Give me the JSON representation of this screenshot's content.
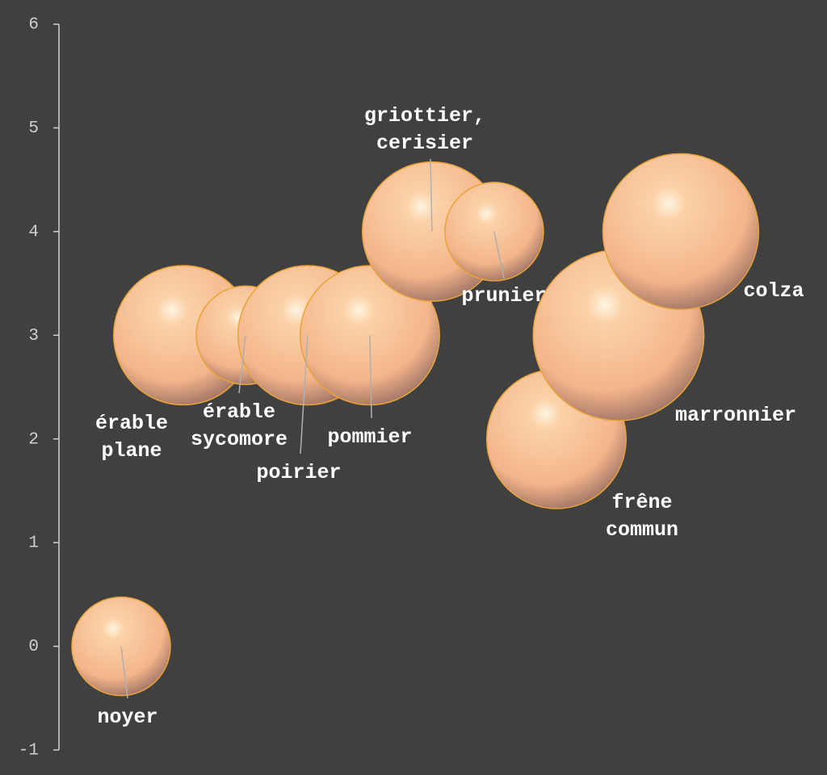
{
  "chart_data": {
    "type": "bubble",
    "labels": [
      [
        "noyer"
      ],
      [
        "érable",
        "plane"
      ],
      [
        "érable",
        "sycomore"
      ],
      [
        "poirier"
      ],
      [
        "pommier"
      ],
      [
        "griottier,",
        "cerisier"
      ],
      [
        "prunier"
      ],
      [
        "frêne",
        "commun"
      ],
      [
        "marronnier"
      ],
      [
        "colza"
      ]
    ],
    "x": [
      1,
      2,
      3,
      4,
      5,
      6,
      7,
      8,
      9,
      10
    ],
    "values": [
      0,
      3,
      3,
      3,
      3,
      4,
      4,
      2,
      3,
      4
    ],
    "sizes": [
      1,
      2,
      1,
      2,
      2,
      2,
      1,
      2,
      3,
      2.5
    ],
    "color": "#f4b58a",
    "xlim": [
      0,
      12.3
    ],
    "ylim": [
      -1,
      6
    ],
    "yticks": [
      -1,
      0,
      1,
      2,
      3,
      4,
      5,
      6
    ]
  }
}
